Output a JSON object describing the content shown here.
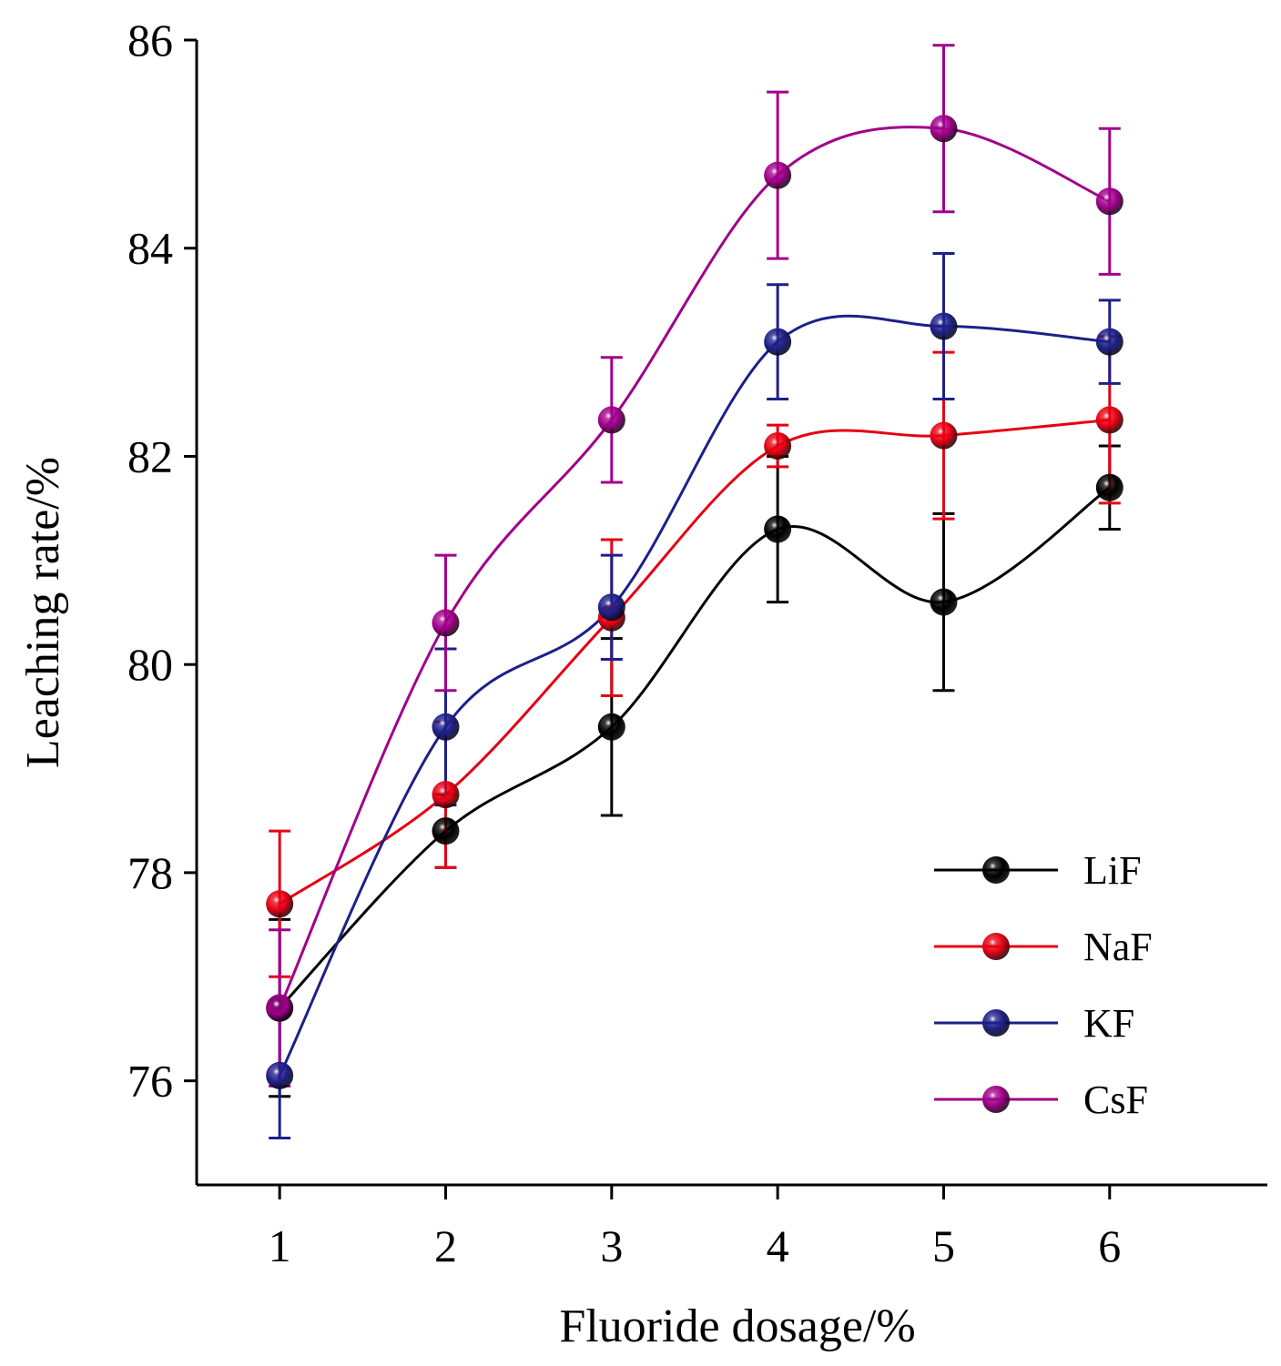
{
  "chart_data": {
    "type": "line",
    "title": "",
    "xlabel": "Fluoride dosage/%",
    "ylabel": "Leaching rate/%",
    "x": [
      1,
      2,
      3,
      4,
      5,
      6
    ],
    "xticks": [
      1,
      2,
      3,
      4,
      5,
      6
    ],
    "yticks": [
      76,
      78,
      80,
      82,
      84,
      86
    ],
    "xlim": [
      0.5,
      6.95
    ],
    "ylim": [
      75.0,
      86.0
    ],
    "grid": false,
    "legend_position": "bottom-right",
    "series": [
      {
        "name": "LiF",
        "color": "#000000",
        "values": [
          76.7,
          78.4,
          79.4,
          81.3,
          80.6,
          81.7
        ],
        "errors": [
          0.85,
          0.35,
          0.85,
          0.7,
          0.85,
          0.4
        ]
      },
      {
        "name": "NaF",
        "color": "#e60012",
        "values": [
          77.7,
          78.75,
          80.45,
          82.1,
          82.2,
          82.35
        ],
        "errors": [
          0.7,
          0.7,
          0.75,
          0.2,
          0.8,
          0.8
        ]
      },
      {
        "name": "KF",
        "color": "#1d2088",
        "values": [
          76.05,
          79.4,
          80.55,
          83.1,
          83.25,
          83.1
        ],
        "errors": [
          0.6,
          0.75,
          0.5,
          0.55,
          0.7,
          0.4
        ]
      },
      {
        "name": "CsF",
        "color": "#a0008a",
        "values": [
          76.7,
          80.4,
          82.35,
          84.7,
          85.15,
          84.45
        ],
        "errors": [
          0.75,
          0.65,
          0.6,
          0.8,
          0.8,
          0.7
        ]
      }
    ]
  }
}
